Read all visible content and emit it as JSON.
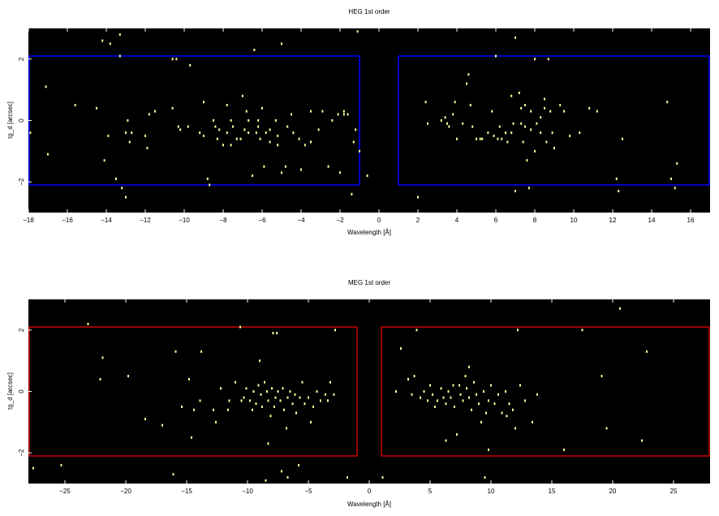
{
  "chart_data": [
    {
      "type": "scatter",
      "title": "HEG 1st order",
      "xlabel": "Wavelength [Å]",
      "ylabel": "tg_d [arcsec]",
      "xlim": [
        -18,
        17
      ],
      "ylim": [
        -3,
        3
      ],
      "xticks": [
        -18,
        -16,
        -14,
        -12,
        -10,
        -8,
        -6,
        -4,
        -2,
        0,
        2,
        4,
        6,
        8,
        10,
        12,
        14,
        16
      ],
      "yticks": [
        -2,
        0,
        2
      ],
      "background": "#000000",
      "point_color": "#ffff99",
      "region_color": "#0000ff",
      "regions": [
        {
          "x": [
            -18,
            -1
          ],
          "y": [
            -2.1,
            2.1
          ]
        },
        {
          "x": [
            1,
            17
          ],
          "y": [
            -2.1,
            2.1
          ]
        }
      ],
      "points": [
        [
          -17.9,
          -0.4
        ],
        [
          -17.1,
          1.1
        ],
        [
          -17.0,
          -1.1
        ],
        [
          -15.6,
          0.5
        ],
        [
          -14.5,
          0.4
        ],
        [
          -14.2,
          2.6
        ],
        [
          -14.1,
          -1.3
        ],
        [
          -13.8,
          2.5
        ],
        [
          -13.9,
          -0.5
        ],
        [
          -13.5,
          -1.9
        ],
        [
          -13.3,
          2.8
        ],
        [
          -13.3,
          2.1
        ],
        [
          -13.2,
          -2.2
        ],
        [
          -13.0,
          -0.4
        ],
        [
          -13.0,
          -2.5
        ],
        [
          -12.9,
          0.0
        ],
        [
          -12.8,
          -0.7
        ],
        [
          -12.7,
          -0.4
        ],
        [
          -12.0,
          -0.5
        ],
        [
          -11.8,
          0.2
        ],
        [
          -11.5,
          0.3
        ],
        [
          -10.6,
          0.4
        ],
        [
          -10.6,
          2.0
        ],
        [
          -10.4,
          2.0
        ],
        [
          -10.3,
          -0.2
        ],
        [
          -10.2,
          -0.3
        ],
        [
          -9.8,
          -0.2
        ],
        [
          -9.2,
          -0.4
        ],
        [
          -9.0,
          0.6
        ],
        [
          -9.0,
          -0.5
        ],
        [
          -8.8,
          -1.9
        ],
        [
          -8.7,
          -2.1
        ],
        [
          -8.5,
          0.0
        ],
        [
          -8.4,
          -0.2
        ],
        [
          -8.2,
          -0.3
        ],
        [
          -8.0,
          -0.8
        ],
        [
          -7.8,
          -0.4
        ],
        [
          -7.6,
          -0.8
        ],
        [
          -7.6,
          0.0
        ],
        [
          -7.5,
          -0.2
        ],
        [
          -7.3,
          -0.6
        ],
        [
          -7.1,
          -0.6
        ],
        [
          -7.0,
          0.8
        ],
        [
          -6.9,
          -0.3
        ],
        [
          -6.7,
          -0.4
        ],
        [
          -6.7,
          0.0
        ],
        [
          -6.5,
          -1.8
        ],
        [
          -6.4,
          2.3
        ],
        [
          -6.3,
          -0.4
        ],
        [
          -6.2,
          -0.2
        ],
        [
          -6.2,
          0.0
        ],
        [
          -6.1,
          -0.6
        ],
        [
          -5.8,
          -0.4
        ],
        [
          -5.6,
          -0.7
        ],
        [
          -5.6,
          -0.3
        ],
        [
          -5.3,
          0.0
        ],
        [
          -5.2,
          -0.5
        ],
        [
          -5.2,
          -0.8
        ],
        [
          -5.0,
          -1.7
        ],
        [
          -5.0,
          2.5
        ],
        [
          -4.8,
          -1.5
        ],
        [
          -4.7,
          -0.2
        ],
        [
          -4.5,
          0.2
        ],
        [
          -4.4,
          -0.4
        ],
        [
          -4.1,
          -0.6
        ],
        [
          -4.0,
          -1.6
        ],
        [
          -3.8,
          -0.8
        ],
        [
          -3.5,
          -0.7
        ],
        [
          -3.5,
          0.3
        ],
        [
          -3.1,
          -0.3
        ],
        [
          -2.9,
          0.3
        ],
        [
          -2.6,
          -1.5
        ],
        [
          -2.4,
          0.0
        ],
        [
          -2.1,
          0.2
        ],
        [
          -2.0,
          -1.7
        ],
        [
          -1.8,
          0.3
        ],
        [
          -1.6,
          0.2
        ],
        [
          -1.4,
          -2.4
        ],
        [
          -1.2,
          -0.3
        ],
        [
          -1.1,
          2.9
        ],
        [
          -1.8,
          0.2
        ],
        [
          -1.0,
          -1.0
        ],
        [
          -0.6,
          -1.8
        ],
        [
          -1.3,
          -0.7
        ],
        [
          -6.8,
          0.3
        ],
        [
          -5.9,
          -1.5
        ],
        [
          -9.7,
          1.8
        ],
        [
          -7.8,
          0.5
        ],
        [
          -8.3,
          -0.6
        ],
        [
          -11.9,
          -0.9
        ],
        [
          -6.0,
          0.4
        ],
        [
          2.0,
          -2.5
        ],
        [
          2.4,
          0.6
        ],
        [
          2.5,
          -0.1
        ],
        [
          3.2,
          0.0
        ],
        [
          3.4,
          0.1
        ],
        [
          3.5,
          -0.1
        ],
        [
          3.6,
          -0.2
        ],
        [
          3.8,
          0.2
        ],
        [
          3.9,
          0.6
        ],
        [
          4.0,
          -0.6
        ],
        [
          4.3,
          -0.1
        ],
        [
          4.5,
          1.2
        ],
        [
          4.6,
          1.5
        ],
        [
          4.7,
          0.5
        ],
        [
          4.8,
          -0.2
        ],
        [
          5.0,
          -0.6
        ],
        [
          5.2,
          -0.6
        ],
        [
          5.3,
          -0.6
        ],
        [
          5.6,
          -0.4
        ],
        [
          5.8,
          0.3
        ],
        [
          5.9,
          -0.5
        ],
        [
          6.0,
          2.1
        ],
        [
          6.1,
          -0.6
        ],
        [
          6.2,
          -0.2
        ],
        [
          6.3,
          -0.6
        ],
        [
          6.5,
          -0.4
        ],
        [
          6.8,
          -0.4
        ],
        [
          6.8,
          0.8
        ],
        [
          6.9,
          -0.1
        ],
        [
          7.0,
          2.7
        ],
        [
          7.0,
          -2.3
        ],
        [
          7.3,
          -0.1
        ],
        [
          7.3,
          0.4
        ],
        [
          7.4,
          -0.7
        ],
        [
          7.5,
          0.5
        ],
        [
          7.5,
          -0.2
        ],
        [
          7.6,
          -1.3
        ],
        [
          7.7,
          -2.2
        ],
        [
          7.8,
          0.3
        ],
        [
          7.8,
          -0.3
        ],
        [
          8.0,
          -1.0
        ],
        [
          8.0,
          2.0
        ],
        [
          8.1,
          -0.1
        ],
        [
          8.3,
          -0.4
        ],
        [
          8.3,
          0.1
        ],
        [
          8.5,
          0.7
        ],
        [
          8.5,
          0.4
        ],
        [
          8.6,
          -0.7
        ],
        [
          8.7,
          2.0
        ],
        [
          8.8,
          0.3
        ],
        [
          8.9,
          -0.4
        ],
        [
          9.0,
          -0.9
        ],
        [
          9.3,
          0.5
        ],
        [
          9.8,
          -0.5
        ],
        [
          10.3,
          -0.4
        ],
        [
          10.8,
          0.4
        ],
        [
          11.2,
          0.3
        ],
        [
          12.2,
          -1.9
        ],
        [
          12.5,
          -0.6
        ],
        [
          14.8,
          0.6
        ],
        [
          15.0,
          -1.9
        ],
        [
          15.2,
          -2.2
        ],
        [
          15.3,
          -1.4
        ],
        [
          12.3,
          -2.3
        ],
        [
          9.5,
          0.3
        ],
        [
          7.2,
          0.9
        ],
        [
          6.6,
          -0.7
        ]
      ]
    },
    {
      "type": "scatter",
      "title": "MEG 1st order",
      "xlabel": "Wavelength [Å]",
      "ylabel": "tg_d [arcsec]",
      "xlim": [
        -28,
        28
      ],
      "ylim": [
        -3,
        3
      ],
      "xticks": [
        -25,
        -20,
        -15,
        -10,
        -5,
        0,
        5,
        10,
        15,
        20,
        25
      ],
      "yticks": [
        -2,
        0,
        2
      ],
      "background": "#000000",
      "point_color": "#ffff99",
      "region_color": "#cc0000",
      "regions": [
        {
          "x": [
            -28,
            -1
          ],
          "y": [
            -2.1,
            2.1
          ]
        },
        {
          "x": [
            1,
            28
          ],
          "y": [
            -2.1,
            2.1
          ]
        }
      ],
      "points": [
        [
          -27.6,
          -2.5
        ],
        [
          -25.3,
          -2.4
        ],
        [
          -23.1,
          2.2
        ],
        [
          -22.1,
          0.4
        ],
        [
          -21.9,
          1.1
        ],
        [
          -19.8,
          0.5
        ],
        [
          -18.4,
          -0.9
        ],
        [
          -17.0,
          -1.1
        ],
        [
          -16.1,
          -2.7
        ],
        [
          -15.9,
          1.3
        ],
        [
          -15.4,
          -0.5
        ],
        [
          -14.8,
          0.4
        ],
        [
          -14.6,
          -1.5
        ],
        [
          -14.4,
          -0.6
        ],
        [
          -13.9,
          -0.3
        ],
        [
          -13.8,
          1.3
        ],
        [
          -12.8,
          -0.6
        ],
        [
          -12.6,
          -1.0
        ],
        [
          -12.2,
          0.1
        ],
        [
          -11.6,
          -0.6
        ],
        [
          -11.5,
          -0.3
        ],
        [
          -11.0,
          0.3
        ],
        [
          -10.5,
          -0.3
        ],
        [
          -10.3,
          -0.2
        ],
        [
          -10.1,
          0.1
        ],
        [
          -9.8,
          -0.3
        ],
        [
          -9.6,
          -0.6
        ],
        [
          -9.5,
          0.0
        ],
        [
          -9.3,
          -0.4
        ],
        [
          -9.1,
          0.2
        ],
        [
          -8.9,
          -0.1
        ],
        [
          -8.8,
          -0.5
        ],
        [
          -8.6,
          0.3
        ],
        [
          -8.4,
          0.0
        ],
        [
          -8.3,
          -0.3
        ],
        [
          -8.1,
          -0.8
        ],
        [
          -8.0,
          0.1
        ],
        [
          -7.8,
          -0.5
        ],
        [
          -7.7,
          -0.2
        ],
        [
          -7.5,
          0.0
        ],
        [
          -7.3,
          -0.3
        ],
        [
          -7.1,
          0.1
        ],
        [
          -7.0,
          -0.6
        ],
        [
          -6.8,
          -1.2
        ],
        [
          -6.7,
          -0.2
        ],
        [
          -6.5,
          0.0
        ],
        [
          -6.3,
          -0.4
        ],
        [
          -6.1,
          -0.1
        ],
        [
          -6.0,
          -0.7
        ],
        [
          -5.7,
          -0.2
        ],
        [
          -5.5,
          0.3
        ],
        [
          -5.3,
          -0.4
        ],
        [
          -5.0,
          -0.2
        ],
        [
          -4.8,
          -1.0
        ],
        [
          -4.6,
          -0.5
        ],
        [
          -4.3,
          0.0
        ],
        [
          -4.0,
          -0.3
        ],
        [
          -3.6,
          -0.1
        ],
        [
          -3.4,
          -0.3
        ],
        [
          -3.2,
          0.3
        ],
        [
          -2.9,
          -0.1
        ],
        [
          -2.8,
          2.0
        ],
        [
          -8.5,
          -2.9
        ],
        [
          -7.2,
          -2.6
        ],
        [
          -6.7,
          -2.8
        ],
        [
          -5.8,
          -2.4
        ],
        [
          -1.8,
          -2.8
        ],
        [
          -9.0,
          1.0
        ],
        [
          -7.9,
          1.9
        ],
        [
          -7.6,
          1.9
        ],
        [
          -10.6,
          2.1
        ],
        [
          -8.3,
          -1.7
        ],
        [
          1.1,
          -2.8
        ],
        [
          2.2,
          0.0
        ],
        [
          2.6,
          1.4
        ],
        [
          3.2,
          0.4
        ],
        [
          3.5,
          -0.1
        ],
        [
          3.7,
          0.5
        ],
        [
          3.9,
          2.0
        ],
        [
          4.2,
          -0.2
        ],
        [
          4.5,
          0.0
        ],
        [
          4.8,
          -0.3
        ],
        [
          5.0,
          0.2
        ],
        [
          5.2,
          -0.1
        ],
        [
          5.4,
          -0.5
        ],
        [
          5.6,
          -0.3
        ],
        [
          5.9,
          0.1
        ],
        [
          6.1,
          -0.2
        ],
        [
          6.3,
          -0.4
        ],
        [
          6.5,
          0.0
        ],
        [
          6.7,
          -0.2
        ],
        [
          6.9,
          0.2
        ],
        [
          7.0,
          -0.5
        ],
        [
          7.2,
          -1.4
        ],
        [
          7.4,
          0.2
        ],
        [
          7.5,
          -0.1
        ],
        [
          7.7,
          -0.3
        ],
        [
          7.9,
          0.5
        ],
        [
          8.0,
          0.1
        ],
        [
          8.2,
          -0.2
        ],
        [
          8.4,
          -0.6
        ],
        [
          8.6,
          0.3
        ],
        [
          8.8,
          -0.1
        ],
        [
          9.0,
          -0.4
        ],
        [
          9.2,
          -1.0
        ],
        [
          9.4,
          0.0
        ],
        [
          9.6,
          -0.7
        ],
        [
          9.8,
          -0.3
        ],
        [
          10.0,
          0.2
        ],
        [
          10.3,
          -0.4
        ],
        [
          10.6,
          -0.1
        ],
        [
          10.9,
          -0.7
        ],
        [
          11.2,
          0.0
        ],
        [
          11.5,
          -0.4
        ],
        [
          11.8,
          -0.6
        ],
        [
          12.0,
          -1.2
        ],
        [
          12.4,
          0.2
        ],
        [
          12.8,
          -0.3
        ],
        [
          13.4,
          -1.0
        ],
        [
          13.8,
          -0.1
        ],
        [
          16.0,
          -1.9
        ],
        [
          17.5,
          2.0
        ],
        [
          19.1,
          0.5
        ],
        [
          19.5,
          -1.2
        ],
        [
          20.6,
          2.7
        ],
        [
          22.4,
          -1.6
        ],
        [
          22.8,
          1.3
        ],
        [
          9.5,
          -2.8
        ],
        [
          12.2,
          2.0
        ],
        [
          9.8,
          -1.9
        ],
        [
          6.3,
          -1.6
        ],
        [
          8.2,
          0.8
        ],
        [
          11.3,
          -0.8
        ]
      ]
    }
  ]
}
